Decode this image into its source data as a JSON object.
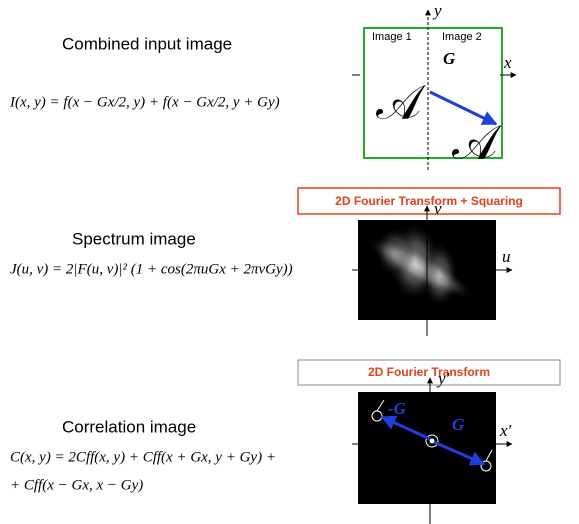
{
  "panels": [
    {
      "caption": "Combined input image",
      "equation": [
        "I(x, y) = f(x − Gx/2, y) + f(x − Gx/2, y + Gy)"
      ],
      "labels": {
        "x_axis": "x",
        "y_axis": "y",
        "left": "Image 1",
        "right": "Image 2",
        "vector": "G",
        "glyph": "𝒜"
      }
    },
    {
      "caption": "Spectrum image",
      "equation": [
        "J(u, v) = 2|F(u, v)|² (1 + cos(2πuGx + 2πvGy))"
      ],
      "labels": {
        "x_axis": "u",
        "y_axis": "v"
      }
    },
    {
      "caption": "Correlation image",
      "equation": [
        "C(x, y) = 2Cff(x, y) + Cff(x + Gx, y + Gy) +",
        "+ Cff(x − Gx, x − Gy)"
      ],
      "labels": {
        "x_axis": "x′",
        "y_axis": "y′",
        "neg_vector": "-G",
        "vector": "G"
      }
    }
  ],
  "steps": [
    "2D Fourier Transform + Squaring",
    "2D Fourier Transform"
  ]
}
